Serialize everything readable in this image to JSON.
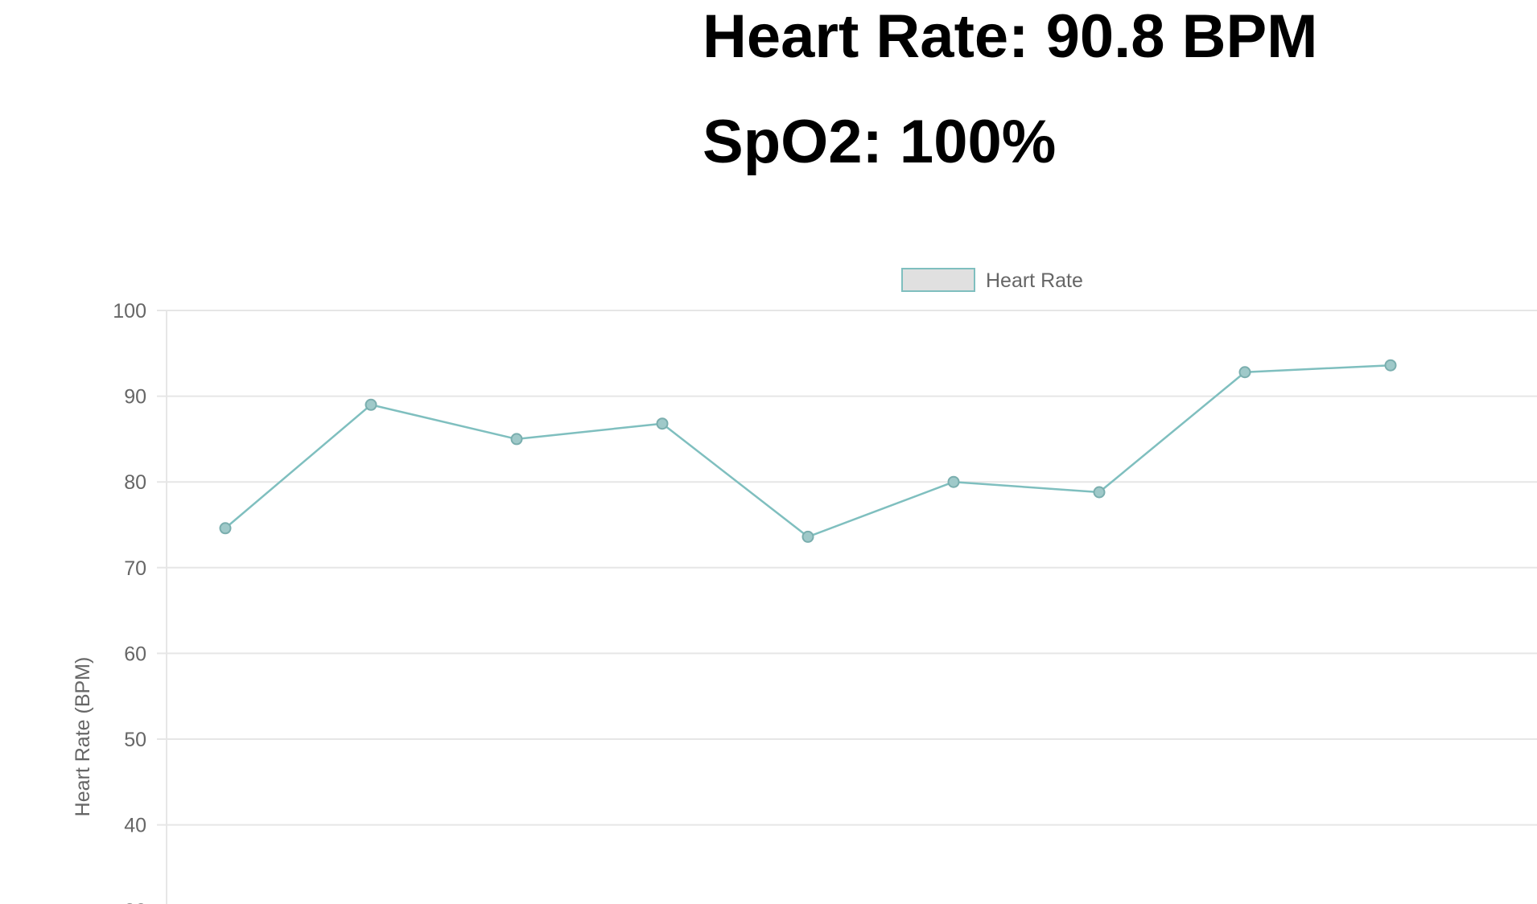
{
  "readouts": {
    "heart_rate": "Heart Rate: 90.8 BPM",
    "spo2": "SpO2: 100%"
  },
  "colors": {
    "line": "#7fbfbf",
    "point": "#9fc9c9",
    "legend_fill": "#e0e0e0",
    "grid": "#e6e6e6",
    "tick_text": "#666666"
  },
  "chart_data": {
    "type": "line",
    "title": "",
    "xlabel": "",
    "ylabel": "Heart Rate (BPM)",
    "ylim": [
      30,
      100
    ],
    "ytick_step": 10,
    "grid": true,
    "legend_position": "top",
    "series": [
      {
        "name": "Heart Rate",
        "values": [
          74.6,
          89.0,
          85.0,
          86.8,
          73.6,
          80.0,
          78.8,
          92.8,
          93.6
        ]
      }
    ]
  }
}
